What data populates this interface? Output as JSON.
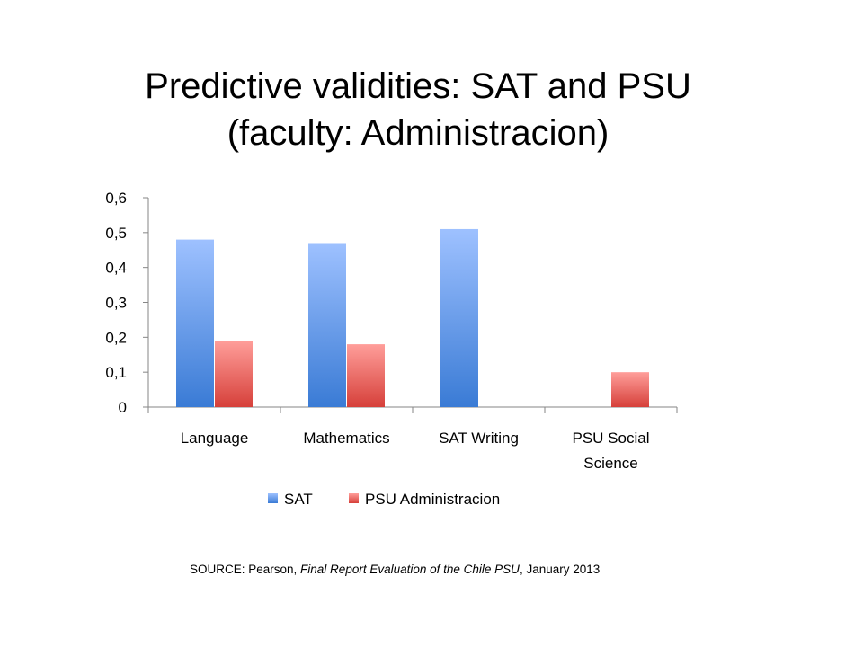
{
  "chart_data": {
    "type": "bar",
    "title": "Predictive validities: SAT and PSU",
    "subtitle": "(faculty: Administracion)",
    "categories": [
      "Language",
      "Mathematics",
      "SAT Writing",
      "PSU Social Science"
    ],
    "series": [
      {
        "name": "SAT",
        "values": [
          0.48,
          0.47,
          0.51,
          null
        ],
        "color_top": "#9EC1FF",
        "color_bottom": "#3A7BD5"
      },
      {
        "name": "PSU Administracion",
        "values": [
          0.19,
          0.18,
          null,
          0.1
        ],
        "color_top": "#FF9E9A",
        "color_bottom": "#D6403A"
      }
    ],
    "ylim": [
      0,
      0.6
    ],
    "yticks": [
      0,
      0.1,
      0.2,
      0.3,
      0.4,
      0.5,
      0.6
    ],
    "ytick_labels": [
      "0",
      "0,1",
      "0,2",
      "0,3",
      "0,4",
      "0,5",
      "0,6"
    ],
    "xlabel": "",
    "ylabel": "",
    "grid": false,
    "legend_position": "bottom"
  },
  "source": {
    "prefix": "SOURCE: Pearson, ",
    "italic": "Final Report Evaluation of the Chile PSU",
    "suffix": ", January 2013"
  }
}
